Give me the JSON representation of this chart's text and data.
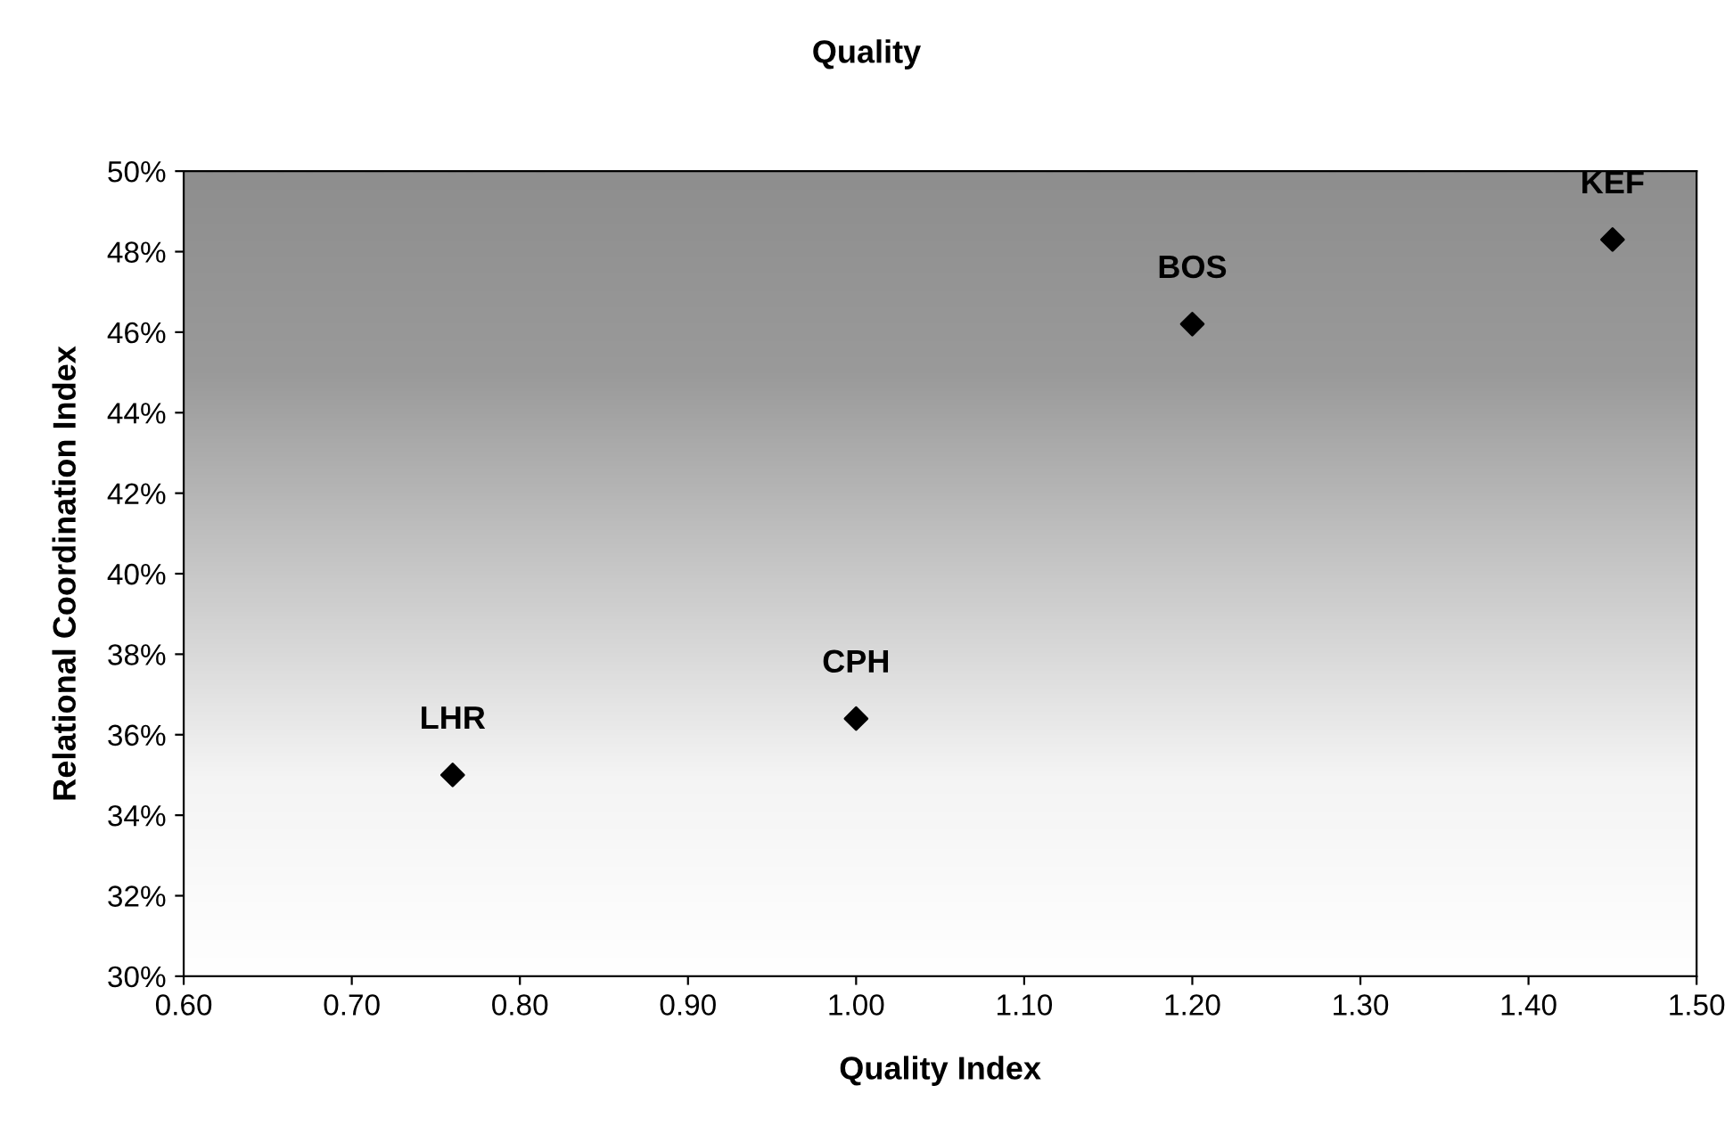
{
  "chart_data": {
    "type": "scatter",
    "title": "Quality",
    "xlabel": "Quality Index",
    "ylabel": "Relational Coordination Index",
    "series": [
      {
        "color": "#000000",
        "x": [
          0.76,
          1.0,
          1.2,
          1.45
        ],
        "values": [
          35.0,
          36.4,
          46.2,
          48.3
        ]
      }
    ],
    "annotations": [
      {
        "text": "LHR",
        "x": 0.76,
        "y": 35.0
      },
      {
        "text": "CPH",
        "x": 1.0,
        "y": 36.4
      },
      {
        "text": "BOS",
        "x": 1.2,
        "y": 46.2
      },
      {
        "text": "KEF",
        "x": 1.45,
        "y": 48.3
      }
    ],
    "marker": "diamond",
    "grid": false,
    "legend": false,
    "xlim": [
      0.6,
      1.5
    ],
    "xticks": [
      {
        "value": 0.6,
        "label": "0.60"
      },
      {
        "value": 0.7,
        "label": "0.70"
      },
      {
        "value": 0.8,
        "label": "0.80"
      },
      {
        "value": 0.9,
        "label": "0.90"
      },
      {
        "value": 1.0,
        "label": "1.00"
      },
      {
        "value": 1.1,
        "label": "1.10"
      },
      {
        "value": 1.2,
        "label": "1.20"
      },
      {
        "value": 1.3,
        "label": "1.30"
      },
      {
        "value": 1.4,
        "label": "1.40"
      },
      {
        "value": 1.5,
        "label": "1.50"
      }
    ],
    "ylim": [
      30,
      50
    ],
    "yticks": [
      {
        "value": 30,
        "label": "30%"
      },
      {
        "value": 32,
        "label": "32%"
      },
      {
        "value": 34,
        "label": "34%"
      },
      {
        "value": 36,
        "label": "36%"
      },
      {
        "value": 38,
        "label": "38%"
      },
      {
        "value": 40,
        "label": "40%"
      },
      {
        "value": 42,
        "label": "42%"
      },
      {
        "value": 44,
        "label": "44%"
      },
      {
        "value": 46,
        "label": "46%"
      },
      {
        "value": 48,
        "label": "48%"
      },
      {
        "value": 50,
        "label": "50%"
      }
    ]
  }
}
